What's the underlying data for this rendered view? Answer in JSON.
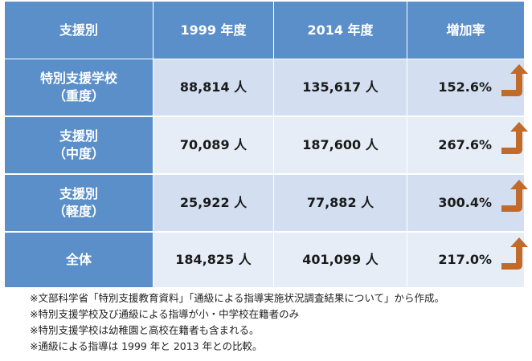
{
  "header": {
    "col1": "支援別",
    "col2": "1999 年度",
    "col3": "2014 年度",
    "col4": "増加率"
  },
  "rows": [
    {
      "label_line1": "特別支援学校",
      "label_line2": "（重度）",
      "y1999": "88,814 人",
      "y2014": "135,617 人",
      "rate": "152.6%"
    },
    {
      "label_line1": "支援別",
      "label_line2": "（中度）",
      "y1999": "70,089 人",
      "y2014": "187,600 人",
      "rate": "267.6%"
    },
    {
      "label_line1": "支援別",
      "label_line2": "（軽度）",
      "y1999": "25,922 人",
      "y2014": "77,882 人",
      "rate": "300.4%"
    },
    {
      "label_line1": "全体",
      "label_line2": "",
      "y1999": "184,825 人",
      "y2014": "401,099 人",
      "rate": "217.0%"
    }
  ],
  "notes": [
    "※文部科学省「特別支援教育資料」「通級による指導実施状況調査結果について」から作成。",
    "※特別支援学校及び通級による指導が小・中学校在籍者のみ",
    "※特別支援学校は幼稚園と高校在籍者も含まれる。",
    "※通級による指導は 1999 年と 2013 年との比較。"
  ],
  "colors": {
    "header_bg": "#5b8fc9",
    "cell_dark": "#d3dff0",
    "cell_light": "#e7edf7",
    "arrow": "#c26a2a"
  },
  "icons": [
    "up-turn-arrow-icon"
  ]
}
